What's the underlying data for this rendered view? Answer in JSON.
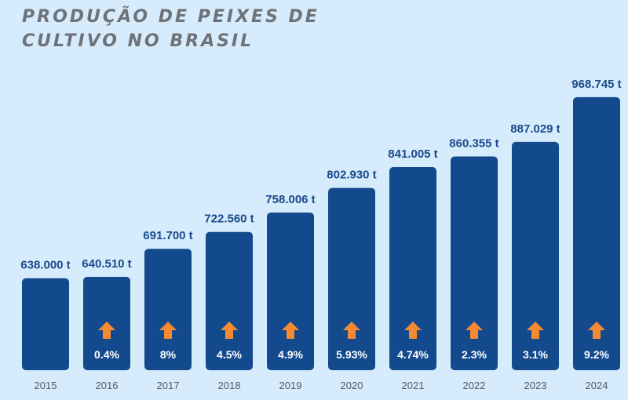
{
  "title_line1": "PRODUÇÃO DE PEIXES DE",
  "title_line2": "CULTIVO NO BRASIL",
  "colors": {
    "bar": "#134a8e",
    "arrow": "#f58a33",
    "value_text": "#1a4a8c",
    "background": "#d6ebfb"
  },
  "chart_data": {
    "type": "bar",
    "title": "PRODUÇÃO DE PEIXES DE CULTIVO NO BRASIL",
    "xlabel": "",
    "ylabel": "",
    "categories": [
      "2015",
      "2016",
      "2017",
      "2018",
      "2019",
      "2020",
      "2021",
      "2022",
      "2023",
      "2024"
    ],
    "values": [
      638000,
      640510,
      691700,
      722560,
      758006,
      802930,
      841005,
      860355,
      887029,
      968745
    ],
    "value_labels": [
      "638.000 t",
      "640.510 t",
      "691.700 t",
      "722.560 t",
      "758.006 t",
      "802.930 t",
      "841.005 t",
      "860.355 t",
      "887.029 t",
      "968.745 t"
    ],
    "growth_labels": [
      null,
      "0.4%",
      "8%",
      "4.5%",
      "4.9%",
      "5.93%",
      "4.74%",
      "2.3%",
      "3.1%",
      "9.2%"
    ],
    "ylim": [
      470000,
      980000
    ],
    "grid": false
  }
}
